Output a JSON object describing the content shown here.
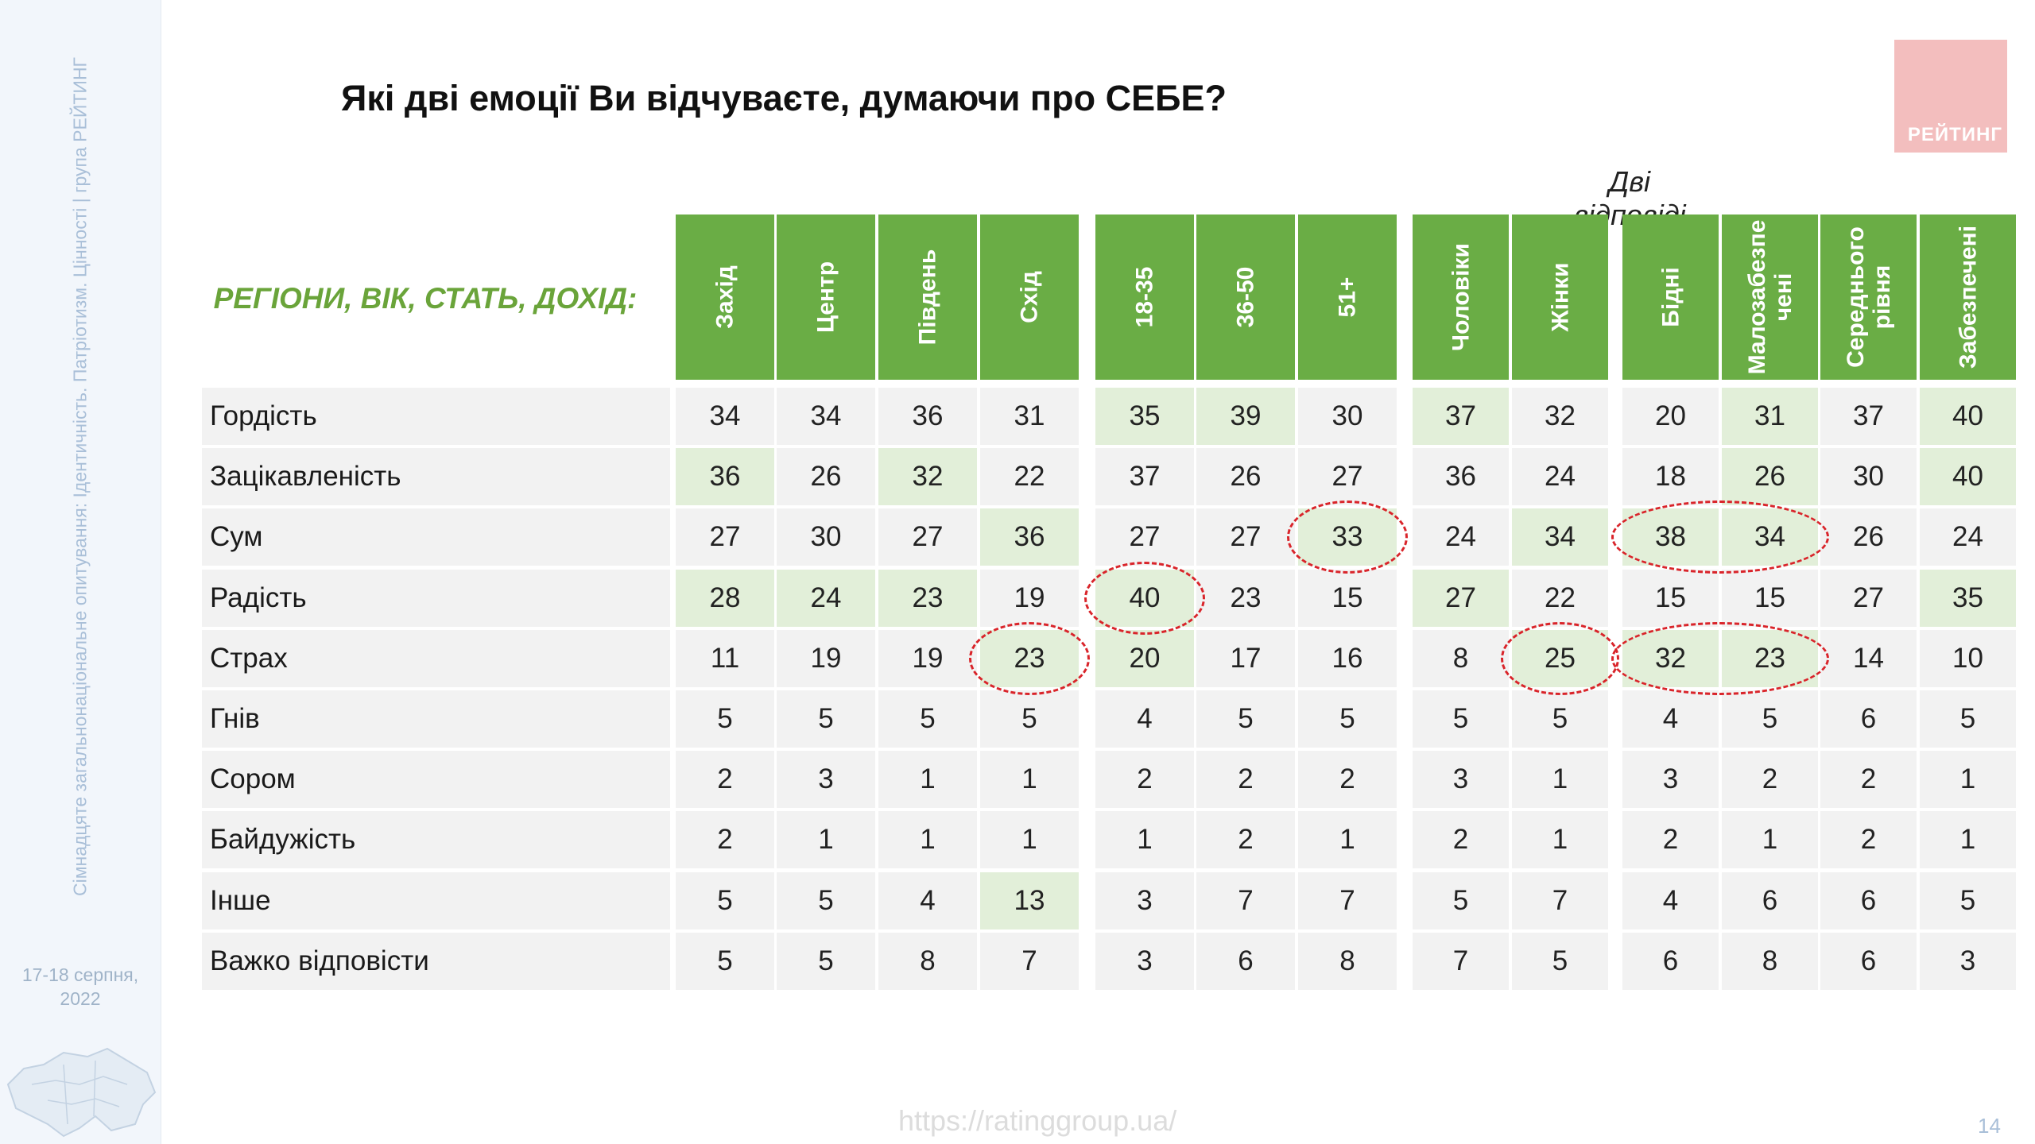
{
  "sidebar": {
    "vertical_text": "Сімнадцяте загальнонаціональне опитування: Ідентичність. Патріотизм. Цінності | група РЕЙТИНГ",
    "date_line1": "17-18 серпня,",
    "date_line2": "2022",
    "map_icon": "ukraine-map-icon"
  },
  "logo": {
    "text": "РЕЙТИНГ",
    "color": "#f3bebe"
  },
  "title": "Які дві емоції Ви відчуваєте, думаючи про СЕБЕ?",
  "subtitle": "Дві відповіді",
  "table": {
    "label": "РЕГІОНИ, ВІК, СТАТЬ, ДОХІД:",
    "columns": [
      "Захід",
      "Центр",
      "Південь",
      "Схід",
      "18-35",
      "36-50",
      "51+",
      "Чоловіки",
      "Жінки",
      "Бідні",
      "Малозабезпе ченi",
      "Середнього рівня",
      "Забезпечені"
    ],
    "rows": [
      {
        "label": "Гордість",
        "values": [
          34,
          34,
          36,
          31,
          35,
          39,
          30,
          37,
          32,
          20,
          31,
          37,
          40
        ],
        "highlight": [
          4,
          5,
          7,
          10,
          12
        ]
      },
      {
        "label": "Зацікавленість",
        "values": [
          36,
          26,
          32,
          22,
          37,
          26,
          27,
          36,
          24,
          18,
          26,
          30,
          40
        ],
        "highlight": [
          0,
          2,
          10,
          12
        ]
      },
      {
        "label": "Сум",
        "values": [
          27,
          30,
          27,
          36,
          27,
          27,
          33,
          24,
          34,
          38,
          34,
          26,
          24
        ],
        "highlight": [
          3,
          6,
          8,
          9,
          10
        ]
      },
      {
        "label": "Радість",
        "values": [
          28,
          24,
          23,
          19,
          40,
          23,
          15,
          27,
          22,
          15,
          15,
          27,
          35
        ],
        "highlight": [
          0,
          1,
          2,
          4,
          7,
          12
        ]
      },
      {
        "label": "Страх",
        "values": [
          11,
          19,
          19,
          23,
          20,
          17,
          16,
          8,
          25,
          32,
          23,
          14,
          10
        ],
        "highlight": [
          3,
          4,
          8,
          9,
          10
        ]
      },
      {
        "label": "Гнів",
        "values": [
          5,
          5,
          5,
          5,
          4,
          5,
          5,
          5,
          5,
          4,
          5,
          6,
          5
        ],
        "highlight": []
      },
      {
        "label": "Сором",
        "values": [
          2,
          3,
          1,
          1,
          2,
          2,
          2,
          3,
          1,
          3,
          2,
          2,
          1
        ],
        "highlight": []
      },
      {
        "label": "Байдужість",
        "values": [
          2,
          1,
          1,
          1,
          1,
          2,
          1,
          2,
          1,
          2,
          1,
          2,
          1
        ],
        "highlight": []
      },
      {
        "label": "Інше",
        "values": [
          5,
          5,
          4,
          13,
          3,
          7,
          7,
          5,
          7,
          4,
          6,
          6,
          5
        ],
        "highlight": [
          3
        ]
      },
      {
        "label": "Важко відповісти",
        "values": [
          5,
          5,
          8,
          7,
          3,
          6,
          8,
          7,
          5,
          6,
          8,
          6,
          3
        ],
        "highlight": []
      }
    ],
    "circled": [
      {
        "row": 2,
        "cols": [
          6
        ]
      },
      {
        "row": 2,
        "cols": [
          9,
          10
        ]
      },
      {
        "row": 3,
        "cols": [
          4
        ]
      },
      {
        "row": 4,
        "cols": [
          3
        ]
      },
      {
        "row": 4,
        "cols": [
          8
        ]
      },
      {
        "row": 4,
        "cols": [
          9,
          10
        ]
      }
    ],
    "colors": {
      "header": "#6aad45",
      "highlight": "#e2efd9",
      "cell": "#f2f2f2",
      "circle": "#d9242a",
      "label": "#6aa43a"
    }
  },
  "footer": {
    "url": "https://ratinggroup.ua/",
    "page": "14"
  }
}
